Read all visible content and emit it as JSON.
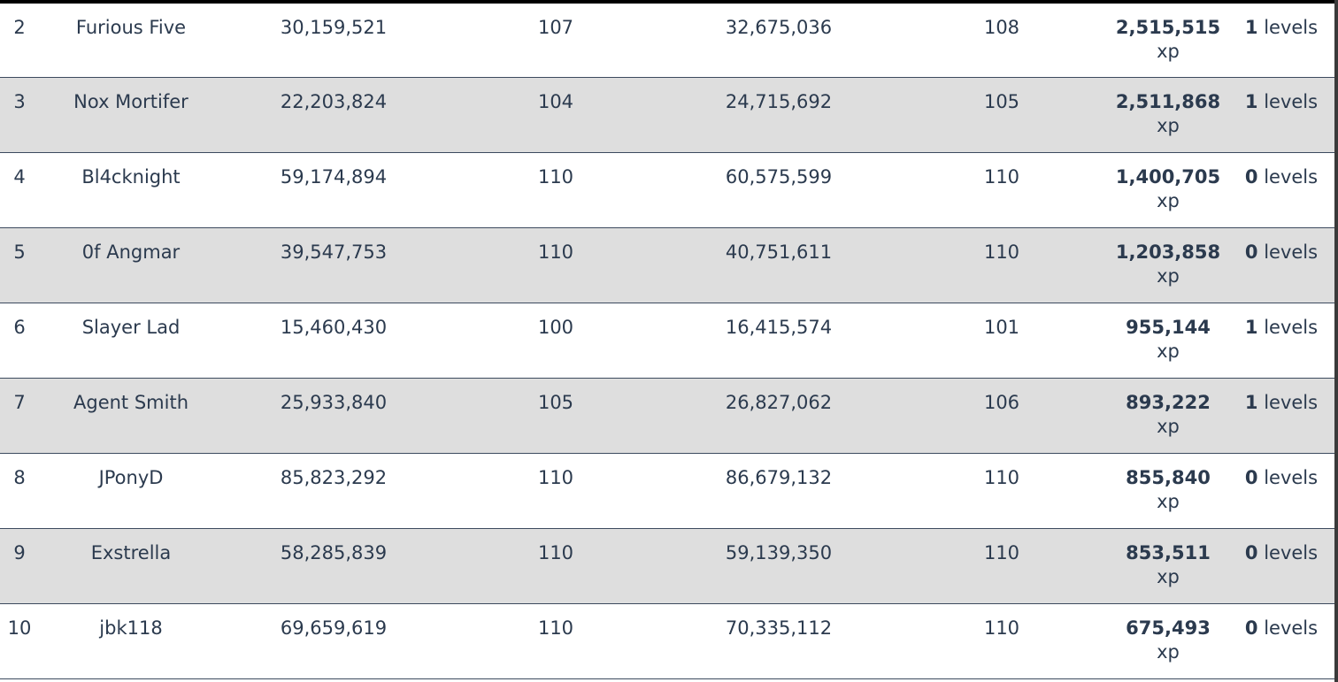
{
  "gain_unit": "xp",
  "levels_unit": "levels",
  "rows": [
    {
      "rank": "2",
      "name": "Furious Five",
      "start_xp": "30,159,521",
      "start_level": "107",
      "end_xp": "32,675,036",
      "end_level": "108",
      "gained_xp": "2,515,515",
      "levels_gained": "1"
    },
    {
      "rank": "3",
      "name": "Nox Mortifer",
      "start_xp": "22,203,824",
      "start_level": "104",
      "end_xp": "24,715,692",
      "end_level": "105",
      "gained_xp": "2,511,868",
      "levels_gained": "1"
    },
    {
      "rank": "4",
      "name": "Bl4cknight",
      "start_xp": "59,174,894",
      "start_level": "110",
      "end_xp": "60,575,599",
      "end_level": "110",
      "gained_xp": "1,400,705",
      "levels_gained": "0"
    },
    {
      "rank": "5",
      "name": "0f Angmar",
      "start_xp": "39,547,753",
      "start_level": "110",
      "end_xp": "40,751,611",
      "end_level": "110",
      "gained_xp": "1,203,858",
      "levels_gained": "0"
    },
    {
      "rank": "6",
      "name": "Slayer Lad",
      "start_xp": "15,460,430",
      "start_level": "100",
      "end_xp": "16,415,574",
      "end_level": "101",
      "gained_xp": "955,144",
      "levels_gained": "1"
    },
    {
      "rank": "7",
      "name": "Agent Smith",
      "start_xp": "25,933,840",
      "start_level": "105",
      "end_xp": "26,827,062",
      "end_level": "106",
      "gained_xp": "893,222",
      "levels_gained": "1"
    },
    {
      "rank": "8",
      "name": "JPonyD",
      "start_xp": "85,823,292",
      "start_level": "110",
      "end_xp": "86,679,132",
      "end_level": "110",
      "gained_xp": "855,840",
      "levels_gained": "0"
    },
    {
      "rank": "9",
      "name": "Exstrella",
      "start_xp": "58,285,839",
      "start_level": "110",
      "end_xp": "59,139,350",
      "end_level": "110",
      "gained_xp": "853,511",
      "levels_gained": "0"
    },
    {
      "rank": "10",
      "name": "jbk118",
      "start_xp": "69,659,619",
      "start_level": "110",
      "end_xp": "70,335,112",
      "end_level": "110",
      "gained_xp": "675,493",
      "levels_gained": "0"
    }
  ]
}
